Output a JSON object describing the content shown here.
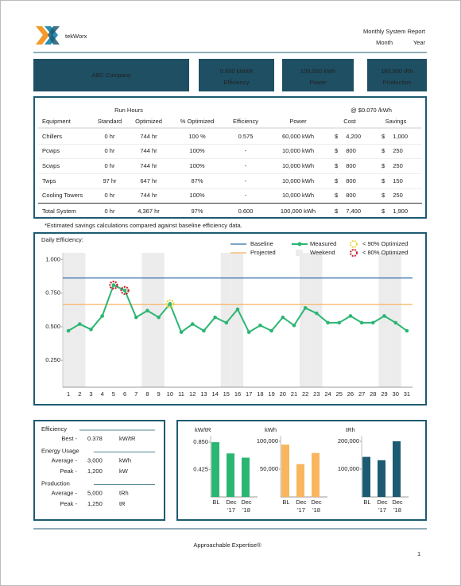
{
  "header": {
    "logo": "tekWorx",
    "title": "Monthly System Report",
    "month": "Month",
    "year": "Year"
  },
  "banner": {
    "company": "ABC Company",
    "tiles": [
      {
        "value": "0.600 kW/tR",
        "label": "Efficiency"
      },
      {
        "value": "100,000 kWh",
        "label": "Power"
      },
      {
        "value": "160,000 tRh",
        "label": "Production"
      }
    ]
  },
  "table": {
    "group_headers": [
      "Run Hours",
      "@ $0.070 /kWh"
    ],
    "columns": [
      "Equipment",
      "Standard",
      "Optimized",
      "% Optimized",
      "Efficiency",
      "Power",
      "Cost",
      "Savings"
    ],
    "rows": [
      [
        "Chillers",
        "0 hr",
        "744 hr",
        "100 %",
        "0.575",
        "60,000 kWh",
        "$ 4,200",
        "$ 1,000"
      ],
      [
        "Pcwps",
        "0 hr",
        "744 hr",
        "100%",
        "-",
        "10,000 kWh",
        "$ 800",
        "$ 250"
      ],
      [
        "Scwps",
        "0 hr",
        "744 hr",
        "100%",
        "-",
        "10,000 kWh",
        "$ 800",
        "$ 250"
      ],
      [
        "Twps",
        "97 hr",
        "647 hr",
        "87%",
        "-",
        "10,000 kWh",
        "$ 800",
        "$ 150"
      ],
      [
        "Cooling Towers",
        "0 hr",
        "744 hr",
        "100%",
        "-",
        "10,000 kWh",
        "$ 800",
        "$ 250"
      ]
    ],
    "total": [
      "Total System",
      "0 hr",
      "4,367 hr",
      "97%",
      "0.600",
      "100,000 kWh",
      "$ 7,400",
      "$ 1,900"
    ],
    "footnote": "*Estimated savings calculations compared against baseline efficiency data."
  },
  "chart_data": [
    {
      "type": "line",
      "title": "Daily Efficiency:",
      "x": [
        1,
        2,
        3,
        4,
        5,
        6,
        7,
        8,
        9,
        10,
        11,
        12,
        13,
        14,
        15,
        16,
        17,
        18,
        19,
        20,
        21,
        22,
        23,
        24,
        25,
        26,
        27,
        28,
        29,
        30,
        31
      ],
      "xlim": [
        0.5,
        31.5
      ],
      "ylim": [
        0.05,
        1.05
      ],
      "yticks": [
        {
          "value": 1,
          "label": "1.000"
        },
        {
          "value": 0.75,
          "label": "0.750"
        },
        {
          "value": 0.5,
          "label": "0.500"
        },
        {
          "value": 0.25,
          "label": "0.250"
        }
      ],
      "series": [
        {
          "name": "Measured",
          "color": "#2bb673",
          "values": [
            0.47,
            0.52,
            0.48,
            0.58,
            0.81,
            0.77,
            0.57,
            0.62,
            0.57,
            0.67,
            0.46,
            0.52,
            0.47,
            0.57,
            0.53,
            0.63,
            0.46,
            0.51,
            0.47,
            0.57,
            0.51,
            0.64,
            0.6,
            0.53,
            0.53,
            0.58,
            0.53,
            0.53,
            0.58,
            0.53,
            0.47
          ]
        }
      ],
      "reference_lines": [
        {
          "name": "Baseline",
          "value": 0.863,
          "color": "#2e6da4"
        },
        {
          "name": "Projected",
          "value": 0.667,
          "color": "#f7b35f"
        }
      ],
      "weekend": {
        "name": "Weekend",
        "color": "#ececec",
        "days": [
          1,
          2,
          8,
          9,
          15,
          16,
          22,
          23,
          29,
          30
        ]
      },
      "flags": [
        {
          "name": "< 90% Optimized",
          "color": "#e8d84a",
          "days": [
            10
          ]
        },
        {
          "name": "< 80% Optimized",
          "color": "#c0282d",
          "days": [
            5,
            6
          ]
        }
      ]
    },
    {
      "type": "bar",
      "title": "kW/tR",
      "categories": [
        [
          "BL"
        ],
        [
          "Dec",
          "'17"
        ],
        [
          "Dec",
          "'18"
        ]
      ],
      "values": [
        0.85,
        0.675,
        0.61
      ],
      "color": "#2bb673",
      "ylim": [
        0,
        0.95
      ],
      "yticks": [
        {
          "value": 0.85,
          "label": "0.850"
        },
        {
          "value": 0.425,
          "label": "0.425"
        }
      ]
    },
    {
      "type": "bar",
      "title": "kWh",
      "categories": [
        [
          "BL"
        ],
        [
          "Dec",
          "'17"
        ],
        [
          "Dec",
          "'18"
        ]
      ],
      "values": [
        94000,
        59000,
        79000
      ],
      "color": "#f9b65f",
      "ylim": [
        0,
        110000
      ],
      "yticks": [
        {
          "value": 100000,
          "label": "100,000"
        },
        {
          "value": 50000,
          "label": "50,000"
        }
      ]
    },
    {
      "type": "bar",
      "title": "tRh",
      "categories": [
        [
          "BL"
        ],
        [
          "Dec",
          "'17"
        ],
        [
          "Dec",
          "'18"
        ]
      ],
      "values": [
        144000,
        132000,
        200000
      ],
      "color": "#1d5b72",
      "ylim": [
        0,
        220000
      ],
      "yticks": [
        {
          "value": 200000,
          "label": "200,000"
        },
        {
          "value": 100000,
          "label": "100,000"
        }
      ]
    }
  ],
  "stats": {
    "groups": [
      {
        "title": "Efficiency",
        "rows": [
          [
            "Best -",
            "0.378",
            "kW/tR"
          ]
        ]
      },
      {
        "title": "Energy Usage",
        "rows": [
          [
            "Average -",
            "3,000",
            "kWh"
          ],
          [
            "Peak -",
            "1,200",
            "kW"
          ]
        ]
      },
      {
        "title": "Production",
        "rows": [
          [
            "Average -",
            "5,000",
            "tRh"
          ],
          [
            "Peak -",
            "1,250",
            "tR"
          ]
        ]
      }
    ]
  },
  "footer": {
    "tagline": "Approachable Expertise®",
    "page": "1"
  }
}
